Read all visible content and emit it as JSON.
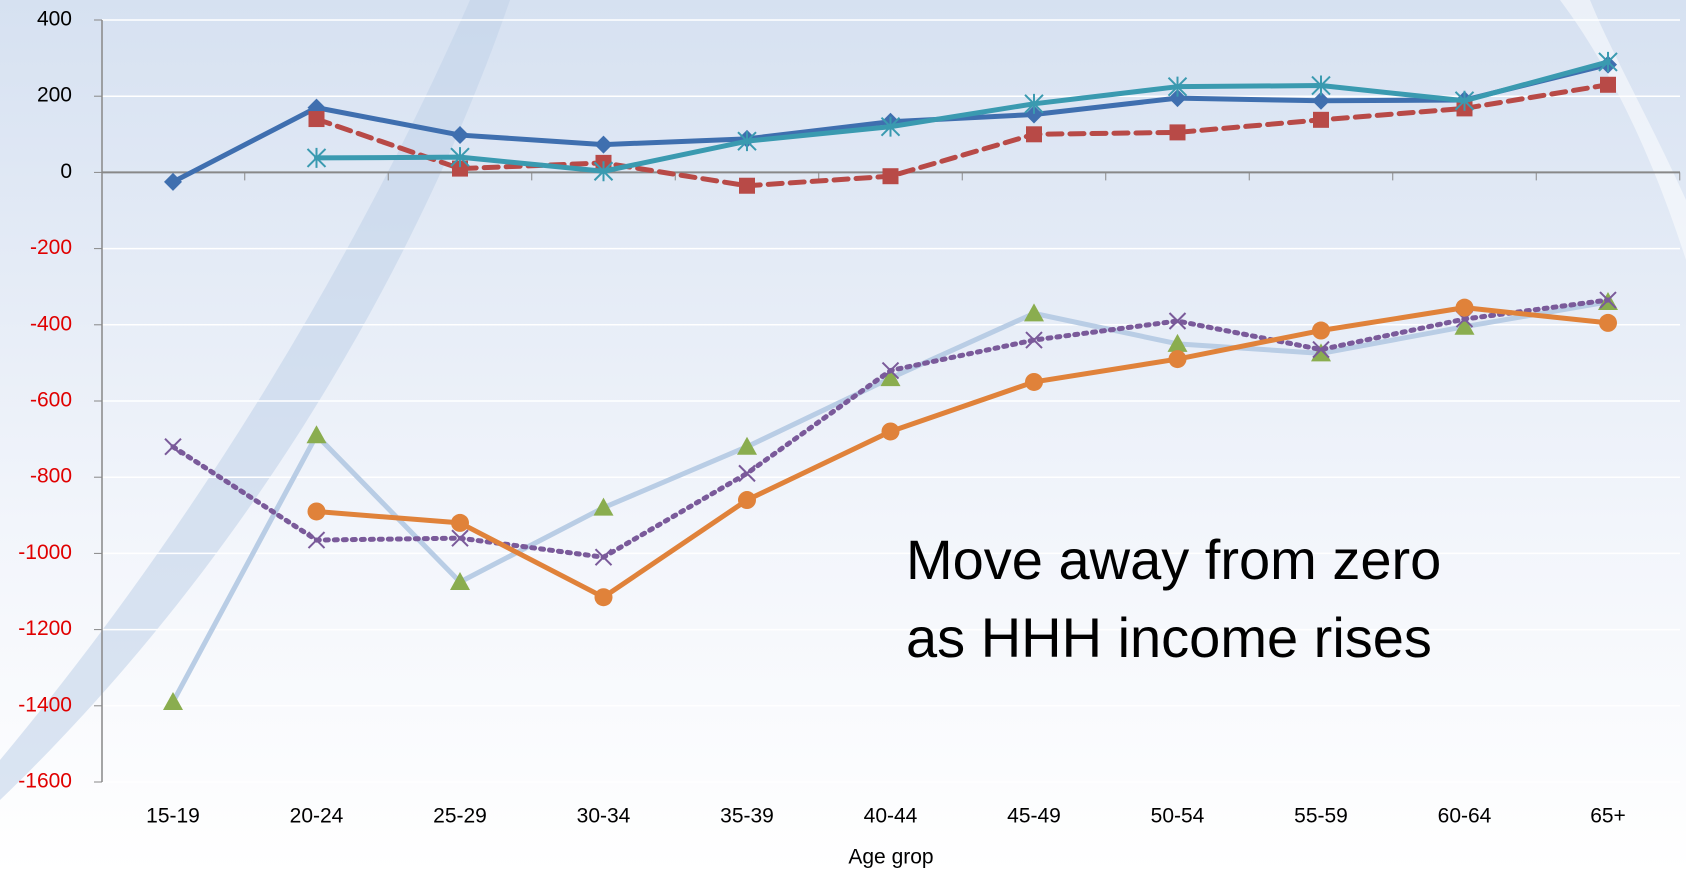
{
  "chart_data": {
    "type": "line",
    "x_label": "Age grop",
    "categories": [
      "15-19",
      "20-24",
      "25-29",
      "30-34",
      "35-39",
      "40-44",
      "45-49",
      "50-54",
      "55-59",
      "60-64",
      "65+"
    ],
    "ylim": [
      -1600,
      400
    ],
    "yticks": [
      -1600,
      -1400,
      -1200,
      -1000,
      -800,
      -600,
      -400,
      -200,
      0,
      200,
      400
    ],
    "negative_tick_color": "#e00000",
    "grid": true,
    "annotation": [
      "Move away from zero",
      "as HHH income rises"
    ],
    "series": [
      {
        "color": "#3f6faf",
        "marker": "diamond",
        "dash": "solid",
        "values": [
          -25,
          170,
          98,
          73,
          88,
          133,
          152,
          195,
          188,
          190,
          283
        ]
      },
      {
        "color": "#b84a47",
        "marker": "square",
        "dash": "dashed",
        "values": [
          null,
          140,
          10,
          25,
          -35,
          -10,
          100,
          105,
          138,
          168,
          230
        ]
      },
      {
        "color": "#3a9ab0",
        "marker": "asterisk",
        "dash": "solid",
        "values": [
          null,
          38,
          40,
          3,
          82,
          120,
          180,
          225,
          228,
          188,
          290
        ]
      },
      {
        "color": "#b9cde5",
        "marker_color": "#8aad4f",
        "marker": "triangle",
        "dash": "solid",
        "values": [
          -1390,
          -690,
          -1075,
          -880,
          -720,
          -540,
          -370,
          -450,
          -475,
          -405,
          -340
        ]
      },
      {
        "color": "#7a5a9a",
        "marker": "x",
        "dash": "dotted",
        "values": [
          -720,
          -965,
          -960,
          -1010,
          -790,
          -520,
          -440,
          -390,
          -465,
          -385,
          -335
        ]
      },
      {
        "color": "#e0823a",
        "marker": "circle",
        "dash": "solid",
        "values": [
          null,
          -890,
          -920,
          -1115,
          -860,
          -680,
          -550,
          -490,
          -415,
          -355,
          -395
        ]
      }
    ]
  }
}
